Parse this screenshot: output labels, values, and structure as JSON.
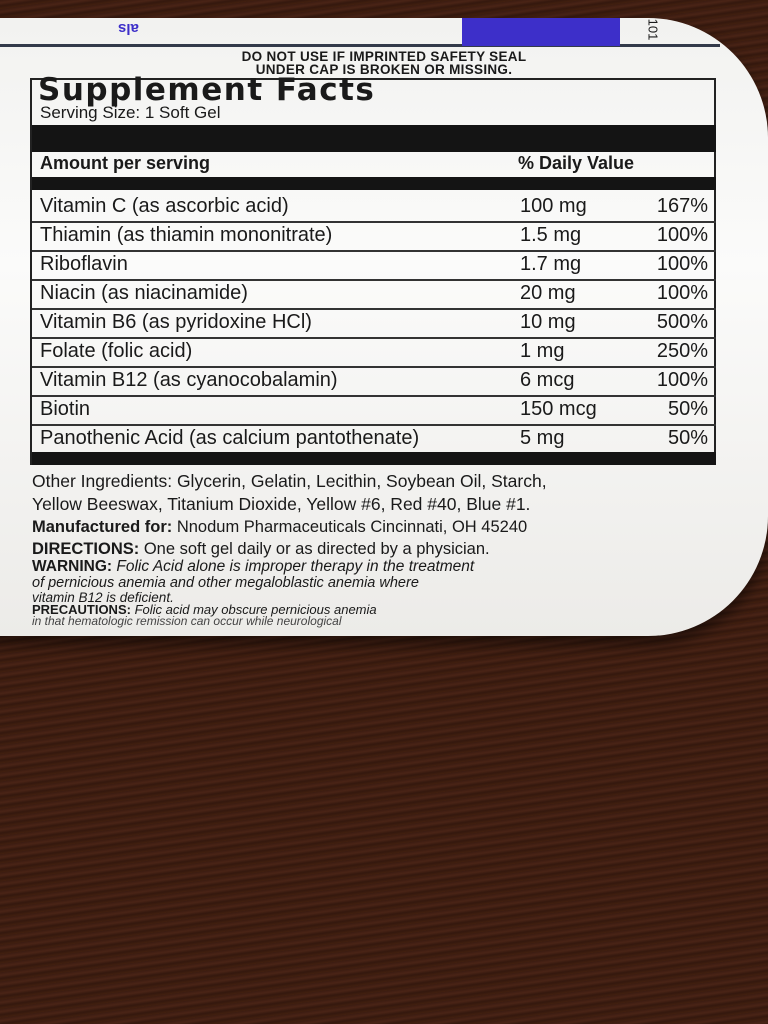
{
  "label": {
    "top_fragment_left": "als",
    "top_fragment_right": "101",
    "seal_warning": [
      "DO NOT USE IF IMPRINTED SAFETY SEAL",
      "UNDER CAP IS BROKEN OR MISSING."
    ],
    "title": "Supplement Facts",
    "serving_size": "Serving Size: 1 Soft Gel",
    "header": {
      "amount": "Amount per serving",
      "dv": "% Daily Value"
    },
    "rows": [
      {
        "name": "Vitamin C (as ascorbic acid)",
        "amount": "100 mg",
        "dv": "167%"
      },
      {
        "name": "Thiamin (as thiamin mononitrate)",
        "amount": "1.5 mg",
        "dv": "100%"
      },
      {
        "name": "Riboflavin",
        "amount": "1.7 mg",
        "dv": "100%"
      },
      {
        "name": "Niacin (as niacinamide)",
        "amount": "20 mg",
        "dv": "100%"
      },
      {
        "name": "Vitamin B6 (as pyridoxine HCl)",
        "amount": "10 mg",
        "dv": "500%"
      },
      {
        "name": "Folate (folic acid)",
        "amount": "1 mg",
        "dv": "250%"
      },
      {
        "name": "Vitamin B12 (as cyanocobalamin)",
        "amount": "6 mcg",
        "dv": "100%"
      },
      {
        "name": "Biotin",
        "amount": "150 mcg",
        "dv": "50%"
      },
      {
        "name": "Panothenic Acid (as calcium pantothenate)",
        "amount": "5 mg",
        "dv": "50%"
      }
    ],
    "other_ingredients": [
      "Other Ingredients: Glycerin, Gelatin, Lecithin, Soybean Oil, Starch,",
      "Yellow Beeswax, Titanium Dioxide, Yellow #6, Red #40, Blue #1."
    ],
    "manufactured_label": "Manufactured for:",
    "manufactured_value": "Nnodum Pharmaceuticals Cincinnati, OH 45240",
    "directions_label": "DIRECTIONS:",
    "directions_value": "One soft gel daily or as directed by a physician.",
    "warning_label": "WARNING:",
    "warning_value": "Folic Acid alone is improper therapy in the treatment",
    "warning_lines": [
      "of pernicious anemia and other megaloblastic anemia where",
      "vitamin B12 is deficient."
    ],
    "precautions_label": "PRECAUTIONS:",
    "precautions_value": "Folic acid may obscure pernicious anemia",
    "precautions_line2": "in that hematologic remission can occur while neurological"
  },
  "colors": {
    "brand_blue": "#3d2fc9",
    "wood": "#3b1c11",
    "label": "#f7f7f5"
  }
}
